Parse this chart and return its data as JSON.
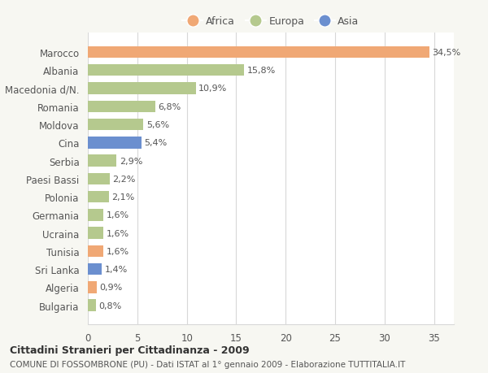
{
  "categories": [
    "Bulgaria",
    "Algeria",
    "Sri Lanka",
    "Tunisia",
    "Ucraina",
    "Germania",
    "Polonia",
    "Paesi Bassi",
    "Serbia",
    "Cina",
    "Moldova",
    "Romania",
    "Macedonia d/N.",
    "Albania",
    "Marocco"
  ],
  "values": [
    0.8,
    0.9,
    1.4,
    1.6,
    1.6,
    1.6,
    2.1,
    2.2,
    2.9,
    5.4,
    5.6,
    6.8,
    10.9,
    15.8,
    34.5
  ],
  "colors": [
    "#b5c98e",
    "#f0a875",
    "#6b8fcf",
    "#f0a875",
    "#b5c98e",
    "#b5c98e",
    "#b5c98e",
    "#b5c98e",
    "#b5c98e",
    "#6b8fcf",
    "#b5c98e",
    "#b5c98e",
    "#b5c98e",
    "#b5c98e",
    "#f0a875"
  ],
  "labels": [
    "0,8%",
    "0,9%",
    "1,4%",
    "1,6%",
    "1,6%",
    "1,6%",
    "2,1%",
    "2,2%",
    "2,9%",
    "5,4%",
    "5,6%",
    "6,8%",
    "10,9%",
    "15,8%",
    "34,5%"
  ],
  "title": "Cittadini Stranieri per Cittadinanza - 2009",
  "subtitle": "COMUNE DI FOSSOMBRONE (PU) - Dati ISTAT al 1° gennaio 2009 - Elaborazione TUTTITALIA.IT",
  "xlim": [
    0,
    37
  ],
  "xticks": [
    0,
    5,
    10,
    15,
    20,
    25,
    30,
    35
  ],
  "legend_labels": [
    "Africa",
    "Europa",
    "Asia"
  ],
  "legend_colors": [
    "#f0a875",
    "#b5c98e",
    "#6b8fcf"
  ],
  "background_color": "#f7f7f2",
  "plot_bg_color": "#ffffff",
  "grid_color": "#d8d8d8",
  "text_color": "#555555"
}
